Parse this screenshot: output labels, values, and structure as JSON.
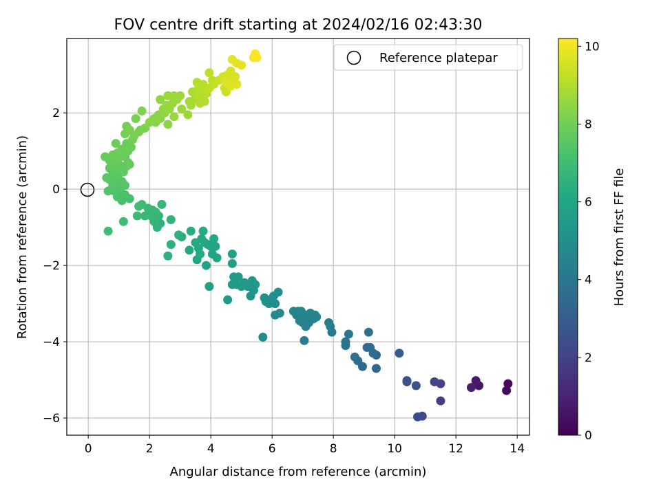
{
  "chart_data": {
    "type": "scatter",
    "title": "FOV centre drift starting at 2024/02/16 02:43:30",
    "xlabel": "Angular distance from reference (arcmin)",
    "ylabel": "Rotation from reference (arcmin)",
    "xlim": [
      -0.7,
      14.4
    ],
    "ylim": [
      -6.45,
      3.95
    ],
    "xticks": [
      "0",
      "2",
      "4",
      "6",
      "8",
      "10",
      "12",
      "14"
    ],
    "yticks": [
      "−6",
      "−4",
      "−2",
      "0",
      "2"
    ],
    "grid": true,
    "legend": {
      "placement": "top-right",
      "entries": [
        "Reference platepar"
      ]
    },
    "reference_point": {
      "x": 0,
      "y": 0,
      "marker": "open-circle"
    },
    "colorbar": {
      "label": "Hours from first FF file",
      "colormap": "viridis",
      "range": [
        0,
        10.2
      ],
      "ticks": [
        "0",
        "2",
        "4",
        "6",
        "8",
        "10"
      ]
    },
    "points": [
      [
        13.7,
        -5.1,
        0.2
      ],
      [
        13.65,
        -5.28,
        0.3
      ],
      [
        12.75,
        -5.15,
        0.6
      ],
      [
        12.65,
        -5.02,
        0.7
      ],
      [
        12.5,
        -5.2,
        0.9
      ],
      [
        11.5,
        -5.55,
        1.8
      ],
      [
        11.5,
        -5.1,
        2.0
      ],
      [
        11.3,
        -5.05,
        2.1
      ],
      [
        10.9,
        -5.95,
        2.2
      ],
      [
        10.75,
        -5.97,
        2.3
      ],
      [
        10.4,
        -5.05,
        2.4
      ],
      [
        10.4,
        -5.02,
        2.5
      ],
      [
        10.15,
        -4.3,
        3.0
      ],
      [
        10.7,
        -5.15,
        2.6
      ],
      [
        9.4,
        -4.35,
        3.4
      ],
      [
        9.4,
        -4.7,
        3.4
      ],
      [
        9.3,
        -4.3,
        3.6
      ],
      [
        9.2,
        -4.15,
        3.7
      ],
      [
        9.1,
        -4.15,
        3.6
      ],
      [
        9.15,
        -3.75,
        3.8
      ],
      [
        8.95,
        -4.65,
        3.5
      ],
      [
        8.8,
        -4.5,
        3.6
      ],
      [
        8.7,
        -4.4,
        3.7
      ],
      [
        8.5,
        -3.8,
        4.0
      ],
      [
        8.4,
        -4.1,
        3.9
      ],
      [
        8.4,
        -4.0,
        3.9
      ],
      [
        7.95,
        -3.75,
        4.1
      ],
      [
        7.9,
        -3.6,
        4.2
      ],
      [
        7.85,
        -3.5,
        4.2
      ],
      [
        7.4,
        -3.3,
        4.4
      ],
      [
        7.35,
        -3.4,
        4.4
      ],
      [
        7.3,
        -3.4,
        4.5
      ],
      [
        7.2,
        -3.5,
        4.4
      ],
      [
        7.15,
        -3.3,
        4.6
      ],
      [
        7.1,
        -3.6,
        4.5
      ],
      [
        7.0,
        -3.3,
        4.5
      ],
      [
        7.0,
        -3.5,
        4.4
      ],
      [
        6.95,
        -3.2,
        4.6
      ],
      [
        6.9,
        -3.45,
        4.5
      ],
      [
        6.85,
        -3.2,
        4.7
      ],
      [
        6.8,
        -3.3,
        4.5
      ],
      [
        6.7,
        -3.2,
        4.6
      ],
      [
        7.05,
        -3.97,
        4.3
      ],
      [
        7.25,
        -3.25,
        4.5
      ],
      [
        7.45,
        -3.35,
        4.6
      ],
      [
        6.25,
        -3.25,
        4.8
      ],
      [
        6.2,
        -2.7,
        5.0
      ],
      [
        6.1,
        -3.3,
        4.8
      ],
      [
        6.1,
        -3.0,
        4.9
      ],
      [
        6.05,
        -2.8,
        5.0
      ],
      [
        6.0,
        -2.95,
        4.9
      ],
      [
        5.9,
        -3.0,
        5.0
      ],
      [
        5.85,
        -2.9,
        5.0
      ],
      [
        5.8,
        -2.95,
        5.1
      ],
      [
        5.75,
        -2.85,
        5.1
      ],
      [
        5.7,
        -3.88,
        4.9
      ],
      [
        5.45,
        -2.5,
        5.3
      ],
      [
        5.4,
        -2.65,
        5.3
      ],
      [
        5.35,
        -2.4,
        5.4
      ],
      [
        5.3,
        -2.8,
        5.2
      ],
      [
        5.25,
        -2.55,
        5.3
      ],
      [
        5.2,
        -2.55,
        5.4
      ],
      [
        5.1,
        -2.45,
        5.5
      ],
      [
        5.0,
        -2.55,
        5.4
      ],
      [
        4.9,
        -2.3,
        5.5
      ],
      [
        4.85,
        -2.5,
        5.5
      ],
      [
        4.7,
        -2.5,
        5.5
      ],
      [
        4.55,
        -2.9,
        5.5
      ],
      [
        4.75,
        -2.3,
        5.6
      ],
      [
        4.7,
        -1.95,
        5.7
      ],
      [
        4.7,
        -1.7,
        5.8
      ],
      [
        4.05,
        -1.7,
        6.0
      ],
      [
        4.2,
        -1.8,
        5.9
      ],
      [
        3.95,
        -2.55,
        5.7
      ],
      [
        4.15,
        -1.5,
        6.0
      ],
      [
        4.1,
        -1.3,
        6.1
      ],
      [
        4.0,
        -1.5,
        6.0
      ],
      [
        3.9,
        -1.45,
        6.0
      ],
      [
        3.8,
        -1.4,
        6.1
      ],
      [
        3.75,
        -1.1,
        6.2
      ],
      [
        3.7,
        -1.3,
        6.1
      ],
      [
        3.6,
        -1.55,
        6.1
      ],
      [
        3.55,
        -1.85,
        6.0
      ],
      [
        3.5,
        -1.4,
        6.2
      ],
      [
        3.35,
        -1.1,
        6.3
      ],
      [
        3.3,
        -1.6,
        6.1
      ],
      [
        3.85,
        -2.0,
        5.9
      ],
      [
        3.65,
        -1.7,
        6.2
      ],
      [
        3.05,
        -1.25,
        6.4
      ],
      [
        2.95,
        -1.2,
        6.5
      ],
      [
        2.7,
        -1.45,
        6.5
      ],
      [
        2.6,
        -1.75,
        6.5
      ],
      [
        2.7,
        -0.8,
        6.6
      ],
      [
        2.4,
        -0.4,
        6.7
      ],
      [
        2.35,
        -0.9,
        6.6
      ],
      [
        2.3,
        -0.7,
        6.7
      ],
      [
        2.25,
        -1.0,
        6.6
      ],
      [
        2.2,
        -0.6,
        6.8
      ],
      [
        2.15,
        -0.85,
        6.7
      ],
      [
        2.1,
        -0.55,
        6.8
      ],
      [
        2.05,
        -0.7,
        6.8
      ],
      [
        1.95,
        -0.5,
        6.9
      ],
      [
        1.85,
        -0.7,
        6.8
      ],
      [
        1.75,
        -0.4,
        7.0
      ],
      [
        1.65,
        -0.45,
        7.0
      ],
      [
        1.6,
        -0.7,
        6.9
      ],
      [
        1.15,
        -0.85,
        7.0
      ],
      [
        0.65,
        -1.1,
        7.0
      ],
      [
        1.35,
        -0.25,
        7.2
      ],
      [
        1.2,
        -0.15,
        7.3
      ],
      [
        1.1,
        -0.3,
        7.2
      ],
      [
        1.05,
        -0.05,
        7.3
      ],
      [
        1.0,
        0.05,
        7.4
      ],
      [
        0.95,
        -0.2,
        7.3
      ],
      [
        0.9,
        0.15,
        7.4
      ],
      [
        0.85,
        -0.05,
        7.4
      ],
      [
        0.8,
        0.1,
        7.5
      ],
      [
        0.7,
        0.25,
        7.5
      ],
      [
        0.65,
        -0.05,
        7.4
      ],
      [
        0.6,
        0.3,
        7.6
      ],
      [
        1.2,
        0.1,
        7.5
      ],
      [
        1.1,
        0.2,
        7.5
      ],
      [
        0.9,
        0.35,
        7.6
      ],
      [
        0.7,
        0.55,
        7.6
      ],
      [
        0.8,
        0.45,
        7.6
      ],
      [
        1.0,
        0.4,
        7.6
      ],
      [
        0.75,
        0.6,
        7.7
      ],
      [
        0.85,
        0.7,
        7.7
      ],
      [
        0.9,
        0.55,
        7.7
      ],
      [
        1.0,
        0.65,
        7.7
      ],
      [
        1.05,
        0.5,
        7.7
      ],
      [
        1.1,
        0.6,
        7.7
      ],
      [
        1.15,
        0.45,
        7.7
      ],
      [
        1.25,
        0.6,
        7.7
      ],
      [
        1.3,
        0.7,
        7.7
      ],
      [
        1.35,
        0.65,
        7.8
      ],
      [
        0.7,
        0.75,
        7.8
      ],
      [
        0.85,
        0.8,
        7.8
      ],
      [
        1.2,
        0.85,
        7.8
      ],
      [
        1.15,
        0.95,
        7.9
      ],
      [
        1.1,
        1.05,
        7.9
      ],
      [
        1.25,
        1.2,
        7.9
      ],
      [
        1.3,
        1.0,
        7.9
      ],
      [
        1.4,
        1.1,
        7.9
      ],
      [
        1.45,
        1.3,
        8.0
      ],
      [
        0.9,
        1.2,
        7.9
      ],
      [
        0.55,
        0.85,
        7.8
      ],
      [
        0.95,
        0.95,
        7.9
      ],
      [
        1.05,
        0.85,
        7.9
      ],
      [
        0.8,
        0.9,
        7.9
      ],
      [
        1.2,
        1.45,
        8.0
      ],
      [
        1.25,
        1.65,
        8.0
      ],
      [
        1.35,
        1.55,
        8.1
      ],
      [
        1.5,
        1.4,
        8.1
      ],
      [
        1.65,
        1.5,
        8.1
      ],
      [
        1.7,
        1.55,
        8.1
      ],
      [
        1.85,
        1.6,
        8.2
      ],
      [
        1.55,
        1.85,
        8.1
      ],
      [
        1.75,
        2.05,
        8.2
      ],
      [
        2.0,
        1.75,
        8.3
      ],
      [
        2.15,
        1.85,
        8.3
      ],
      [
        2.2,
        1.75,
        8.3
      ],
      [
        2.3,
        1.95,
        8.4
      ],
      [
        2.35,
        1.85,
        8.4
      ],
      [
        2.1,
        1.8,
        8.4
      ],
      [
        2.45,
        2.1,
        8.5
      ],
      [
        2.35,
        2.35,
        8.5
      ],
      [
        2.6,
        1.7,
        8.4
      ],
      [
        2.5,
        2.0,
        8.5
      ],
      [
        2.55,
        2.2,
        8.6
      ],
      [
        2.65,
        2.1,
        8.6
      ],
      [
        2.8,
        1.9,
        8.6
      ],
      [
        2.75,
        2.25,
        8.6
      ],
      [
        2.8,
        2.45,
        8.7
      ],
      [
        2.9,
        2.35,
        8.7
      ],
      [
        3.0,
        2.45,
        8.7
      ],
      [
        3.05,
        2.1,
        8.7
      ],
      [
        2.6,
        2.45,
        8.7
      ],
      [
        3.25,
        1.95,
        8.7
      ],
      [
        3.3,
        2.3,
        8.8
      ],
      [
        3.35,
        2.2,
        8.8
      ],
      [
        3.4,
        2.55,
        8.9
      ],
      [
        3.5,
        2.4,
        8.9
      ],
      [
        3.55,
        2.35,
        8.9
      ],
      [
        3.6,
        2.45,
        9.0
      ],
      [
        3.65,
        2.25,
        9.0
      ],
      [
        3.7,
        2.6,
        9.0
      ],
      [
        3.75,
        2.5,
        9.0
      ],
      [
        3.8,
        2.3,
        9.0
      ],
      [
        3.55,
        2.8,
        9.1
      ],
      [
        3.6,
        2.65,
        9.1
      ],
      [
        3.75,
        2.75,
        9.1
      ],
      [
        3.85,
        2.5,
        9.1
      ],
      [
        3.95,
        2.65,
        9.2
      ],
      [
        3.95,
        3.05,
        9.2
      ],
      [
        4.05,
        2.85,
        9.2
      ],
      [
        4.1,
        2.75,
        9.3
      ],
      [
        4.25,
        2.85,
        9.3
      ],
      [
        4.45,
        2.65,
        9.4
      ],
      [
        4.5,
        2.55,
        9.4
      ],
      [
        4.4,
        2.95,
        9.5
      ],
      [
        4.55,
        3.0,
        9.5
      ],
      [
        4.6,
        2.85,
        9.5
      ],
      [
        4.65,
        3.1,
        9.6
      ],
      [
        4.7,
        2.95,
        9.6
      ],
      [
        4.75,
        2.8,
        9.6
      ],
      [
        4.8,
        2.95,
        9.6
      ],
      [
        4.5,
        2.8,
        9.7
      ],
      [
        4.65,
        2.7,
        9.7
      ],
      [
        4.85,
        2.75,
        9.7
      ],
      [
        4.7,
        3.4,
        9.8
      ],
      [
        4.85,
        3.3,
        9.8
      ],
      [
        5.0,
        3.25,
        9.8
      ],
      [
        5.4,
        3.45,
        10.0
      ],
      [
        5.5,
        3.45,
        10.1
      ],
      [
        5.45,
        3.55,
        10.2
      ]
    ]
  }
}
